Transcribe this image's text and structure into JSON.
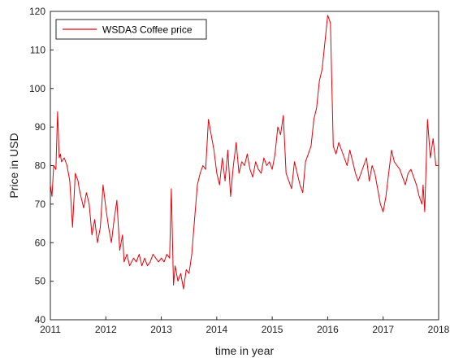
{
  "chart_data": {
    "type": "line",
    "title": "",
    "xlabel": "time in year",
    "ylabel": "Price in USD",
    "xlim": [
      2011,
      2018
    ],
    "ylim": [
      40,
      120
    ],
    "xticks": [
      "2011",
      "2012",
      "2013",
      "2014",
      "2015",
      "2016",
      "2017",
      "2018"
    ],
    "yticks": [
      "40",
      "50",
      "60",
      "70",
      "80",
      "90",
      "100",
      "110",
      "120"
    ],
    "grid": false,
    "legend_position": "top-left",
    "series": [
      {
        "name": "WSDA3 Coffee price",
        "color": "#e8000b",
        "x": [
          2011.0,
          2011.03,
          2011.06,
          2011.1,
          2011.13,
          2011.16,
          2011.18,
          2011.2,
          2011.25,
          2011.3,
          2011.35,
          2011.4,
          2011.45,
          2011.5,
          2011.52,
          2011.55,
          2011.6,
          2011.65,
          2011.7,
          2011.75,
          2011.8,
          2011.85,
          2011.9,
          2011.95,
          2012.0,
          2012.05,
          2012.1,
          2012.15,
          2012.2,
          2012.25,
          2012.3,
          2012.33,
          2012.38,
          2012.43,
          2012.5,
          2012.55,
          2012.6,
          2012.65,
          2012.7,
          2012.75,
          2012.8,
          2012.85,
          2012.9,
          2012.95,
          2013.0,
          2013.05,
          2013.1,
          2013.15,
          2013.18,
          2013.22,
          2013.25,
          2013.3,
          2013.35,
          2013.4,
          2013.45,
          2013.5,
          2013.55,
          2013.6,
          2013.65,
          2013.7,
          2013.75,
          2013.8,
          2013.85,
          2013.9,
          2013.95,
          2014.0,
          2014.05,
          2014.1,
          2014.15,
          2014.2,
          2014.25,
          2014.3,
          2014.35,
          2014.4,
          2014.45,
          2014.5,
          2014.55,
          2014.6,
          2014.65,
          2014.7,
          2014.75,
          2014.8,
          2014.85,
          2014.9,
          2014.95,
          2015.0,
          2015.05,
          2015.1,
          2015.15,
          2015.2,
          2015.25,
          2015.3,
          2015.35,
          2015.4,
          2015.45,
          2015.5,
          2015.55,
          2015.6,
          2015.65,
          2015.7,
          2015.75,
          2015.8,
          2015.85,
          2015.9,
          2015.95,
          2016.0,
          2016.05,
          2016.1,
          2016.15,
          2016.2,
          2016.25,
          2016.3,
          2016.35,
          2016.4,
          2016.45,
          2016.5,
          2016.55,
          2016.6,
          2016.65,
          2016.7,
          2016.75,
          2016.8,
          2016.85,
          2016.9,
          2016.95,
          2017.0,
          2017.05,
          2017.1,
          2017.15,
          2017.2,
          2017.25,
          2017.3,
          2017.35,
          2017.4,
          2017.45,
          2017.5,
          2017.55,
          2017.6,
          2017.65,
          2017.7,
          2017.72,
          2017.75,
          2017.8,
          2017.85,
          2017.9,
          2017.95,
          2018.0
        ],
        "values": [
          75,
          72,
          80,
          79,
          94,
          82,
          83,
          81,
          82,
          80,
          76,
          64,
          78,
          76,
          74,
          72,
          69,
          73,
          70,
          62,
          66,
          60,
          64,
          75,
          69,
          64,
          60,
          66,
          71,
          58,
          62,
          55,
          57,
          54,
          56,
          55,
          57,
          54,
          56,
          54,
          55,
          57,
          56,
          55,
          56,
          55,
          57,
          56,
          74,
          49,
          54,
          50,
          52,
          48,
          53,
          52,
          57,
          66,
          75,
          78,
          80,
          79,
          92,
          88,
          84,
          78,
          75,
          82,
          76,
          84,
          72,
          80,
          86,
          78,
          81,
          80,
          83,
          79,
          77,
          81,
          79,
          78,
          82,
          80,
          81,
          79,
          83,
          90,
          88,
          93,
          78,
          76,
          74,
          81,
          78,
          75,
          73,
          81,
          83,
          85,
          92,
          95,
          102,
          105,
          112,
          119,
          117,
          85,
          83,
          86,
          84,
          82,
          80,
          84,
          81,
          78,
          76,
          78,
          80,
          82,
          76,
          80,
          78,
          74,
          70,
          68,
          72,
          78,
          84,
          81,
          80,
          79,
          77,
          75,
          78,
          79,
          77,
          75,
          72,
          70,
          75,
          68,
          92,
          82,
          87,
          80,
          80
        ]
      }
    ]
  }
}
